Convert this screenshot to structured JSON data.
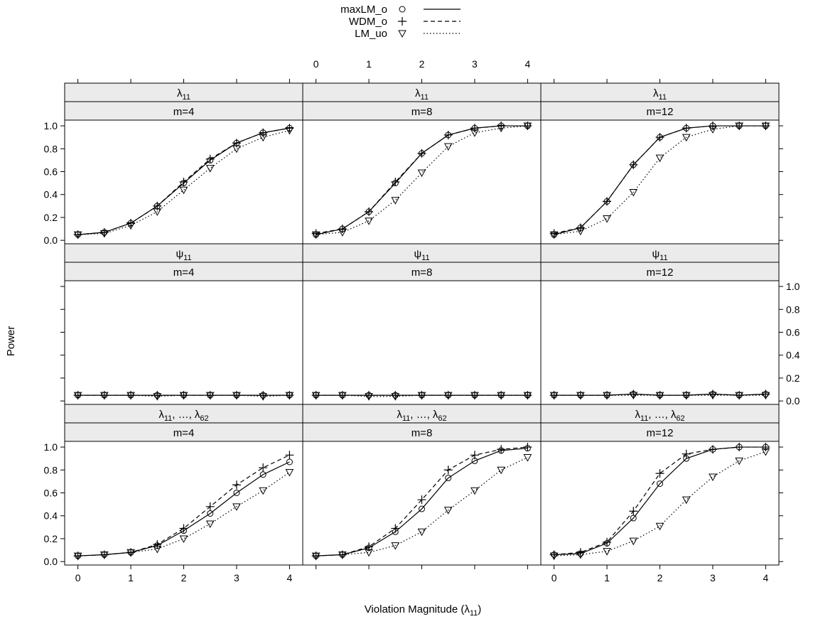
{
  "chart_data": {
    "type": "line",
    "ylabel": "Power",
    "xlabel": {
      "main": "Violation Magnitude (λ",
      "sub": "11",
      "tail": ")"
    },
    "x": [
      0,
      0.5,
      1,
      1.5,
      2,
      2.5,
      3,
      3.5,
      4
    ],
    "xlim": [
      -0.25,
      4.25
    ],
    "ylim": [
      -0.03,
      1.05
    ],
    "xticks": [
      "0",
      "1",
      "2",
      "3",
      "4"
    ],
    "yticks": [
      "0.0",
      "0.2",
      "0.4",
      "0.6",
      "0.8",
      "1.0"
    ],
    "legend": {
      "position": "top-center",
      "entries": [
        {
          "name": "maxLM_o",
          "marker": "circle",
          "line": "solid"
        },
        {
          "name": "WDM_o",
          "marker": "plus",
          "line": "dashed"
        },
        {
          "name": "LM_uo",
          "marker": "triangle-down",
          "line": "dotted"
        }
      ]
    },
    "strip_rows": [
      {
        "param_main": "λ",
        "param_sub": "11",
        "param_list": false
      },
      {
        "param_main": "ψ",
        "param_sub": "11",
        "param_list": false
      },
      {
        "param_main": "λ",
        "param_sub": "11",
        "param_list": true,
        "param_mid": ", …, ",
        "param_main2": "λ",
        "param_sub2": "62"
      }
    ],
    "m_labels": [
      "m=4",
      "m=8",
      "m=12"
    ],
    "panels": [
      {
        "row": 0,
        "col": 0,
        "series": [
          {
            "values": [
              0.05,
              0.07,
              0.15,
              0.3,
              0.5,
              0.7,
              0.85,
              0.94,
              0.98
            ]
          },
          {
            "values": [
              0.05,
              0.07,
              0.15,
              0.3,
              0.51,
              0.71,
              0.85,
              0.94,
              0.98
            ]
          },
          {
            "values": [
              0.05,
              0.06,
              0.13,
              0.25,
              0.44,
              0.63,
              0.8,
              0.9,
              0.96
            ]
          }
        ]
      },
      {
        "row": 0,
        "col": 1,
        "series": [
          {
            "values": [
              0.05,
              0.1,
              0.25,
              0.5,
              0.76,
              0.92,
              0.98,
              1.0,
              1.0
            ]
          },
          {
            "values": [
              0.06,
              0.1,
              0.25,
              0.51,
              0.76,
              0.92,
              0.98,
              1.0,
              1.0
            ]
          },
          {
            "values": [
              0.05,
              0.07,
              0.17,
              0.35,
              0.59,
              0.82,
              0.94,
              0.98,
              1.0
            ]
          }
        ]
      },
      {
        "row": 0,
        "col": 2,
        "series": [
          {
            "values": [
              0.05,
              0.11,
              0.34,
              0.66,
              0.9,
              0.98,
              1.0,
              1.0,
              1.0
            ]
          },
          {
            "values": [
              0.06,
              0.11,
              0.34,
              0.66,
              0.9,
              0.98,
              1.0,
              1.0,
              1.0
            ]
          },
          {
            "values": [
              0.05,
              0.08,
              0.19,
              0.42,
              0.72,
              0.9,
              0.97,
              1.0,
              1.0
            ]
          }
        ]
      },
      {
        "row": 1,
        "col": 0,
        "series": [
          {
            "values": [
              0.05,
              0.05,
              0.05,
              0.05,
              0.05,
              0.05,
              0.05,
              0.05,
              0.05
            ]
          },
          {
            "values": [
              0.05,
              0.05,
              0.05,
              0.05,
              0.05,
              0.05,
              0.05,
              0.05,
              0.05
            ]
          },
          {
            "values": [
              0.05,
              0.05,
              0.05,
              0.04,
              0.05,
              0.05,
              0.05,
              0.04,
              0.05
            ]
          }
        ]
      },
      {
        "row": 1,
        "col": 1,
        "series": [
          {
            "values": [
              0.05,
              0.05,
              0.05,
              0.05,
              0.05,
              0.05,
              0.05,
              0.05,
              0.05
            ]
          },
          {
            "values": [
              0.05,
              0.05,
              0.05,
              0.05,
              0.05,
              0.05,
              0.05,
              0.05,
              0.05
            ]
          },
          {
            "values": [
              0.05,
              0.05,
              0.04,
              0.04,
              0.05,
              0.05,
              0.05,
              0.05,
              0.05
            ]
          }
        ]
      },
      {
        "row": 1,
        "col": 2,
        "series": [
          {
            "values": [
              0.05,
              0.05,
              0.05,
              0.06,
              0.05,
              0.05,
              0.06,
              0.05,
              0.06
            ]
          },
          {
            "values": [
              0.05,
              0.05,
              0.05,
              0.06,
              0.05,
              0.05,
              0.06,
              0.05,
              0.06
            ]
          },
          {
            "values": [
              0.05,
              0.05,
              0.05,
              0.05,
              0.05,
              0.05,
              0.05,
              0.05,
              0.05
            ]
          }
        ]
      },
      {
        "row": 2,
        "col": 0,
        "series": [
          {
            "values": [
              0.05,
              0.06,
              0.08,
              0.14,
              0.27,
              0.42,
              0.6,
              0.76,
              0.87
            ]
          },
          {
            "values": [
              0.05,
              0.06,
              0.08,
              0.15,
              0.29,
              0.48,
              0.67,
              0.82,
              0.93
            ]
          },
          {
            "values": [
              0.05,
              0.06,
              0.08,
              0.11,
              0.2,
              0.33,
              0.48,
              0.62,
              0.78
            ]
          }
        ]
      },
      {
        "row": 2,
        "col": 1,
        "series": [
          {
            "values": [
              0.05,
              0.06,
              0.12,
              0.26,
              0.46,
              0.73,
              0.88,
              0.97,
              0.99
            ]
          },
          {
            "values": [
              0.05,
              0.06,
              0.13,
              0.29,
              0.54,
              0.8,
              0.93,
              0.98,
              1.0
            ]
          },
          {
            "values": [
              0.05,
              0.06,
              0.08,
              0.14,
              0.26,
              0.45,
              0.62,
              0.8,
              0.91
            ]
          }
        ]
      },
      {
        "row": 2,
        "col": 2,
        "series": [
          {
            "values": [
              0.06,
              0.07,
              0.16,
              0.38,
              0.68,
              0.9,
              0.98,
              1.0,
              1.0
            ]
          },
          {
            "values": [
              0.06,
              0.08,
              0.17,
              0.44,
              0.77,
              0.94,
              0.98,
              1.0,
              1.0
            ]
          },
          {
            "values": [
              0.05,
              0.06,
              0.09,
              0.18,
              0.31,
              0.54,
              0.74,
              0.88,
              0.96
            ]
          }
        ]
      }
    ]
  }
}
